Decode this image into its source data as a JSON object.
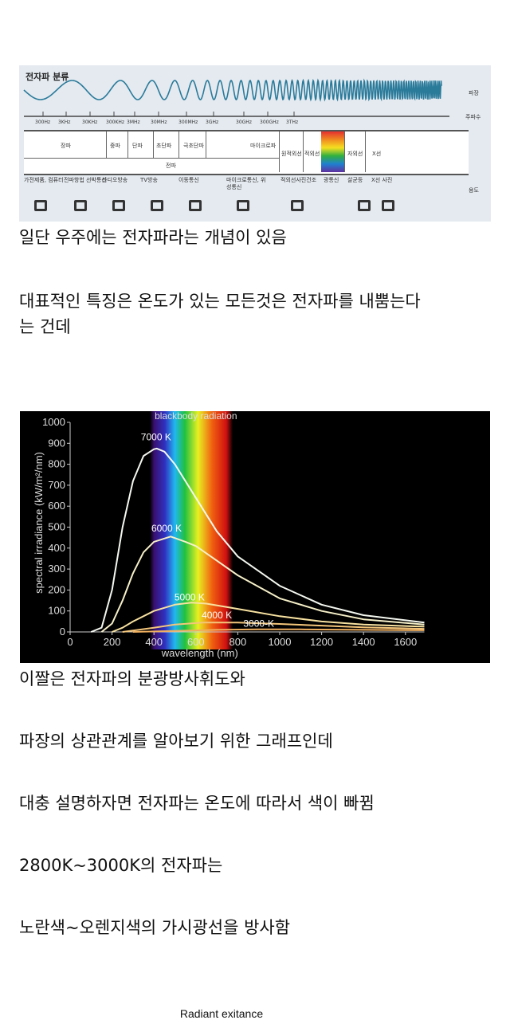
{
  "diagram": {
    "title": "전자파 분류",
    "row_labels": {
      "wavelength": "파장",
      "frequency": "주파수",
      "use": "용도"
    },
    "frequencies": [
      "300Hz",
      "3KHz",
      "30KHz",
      "300KHz",
      "3MHz",
      "30MHz",
      "300MHz",
      "3GHz",
      "30GHz",
      "300GHz",
      "3THz"
    ],
    "bands": [
      "장파",
      "중파",
      "단파",
      "초단파",
      "극초단파",
      "마이크로파"
    ],
    "radio_label": "전파",
    "optical_bands": [
      "원적외선",
      "적외선",
      "가시광선",
      "자외선",
      "X선"
    ],
    "uses": [
      "가전제품, 컴퓨터",
      "전파항법 선박통신",
      "라디오방송",
      "TV방송",
      "이동통신",
      "마이크로통신, 위성통신",
      "적외선사진건조",
      "광통신",
      "살균등",
      "X선 사진"
    ],
    "icons": [
      "computer-icon",
      "antenna-tower-icon",
      "radio-icon",
      "tv-icon",
      "mobile-phone-icon",
      "satellite-icon",
      "infrared-dryer-icon",
      "optical-comm-icon",
      "sterilizer-icon",
      "xray-photo-icon"
    ]
  },
  "paragraphs": [
    "일단 우주에는 전자파라는 개념이 있음",
    "대표적인 특징은 온도가 있는 모든것은 전자파를 내뿜는다",
    "는 건데",
    "이짤은 전자파의 분광방사휘도와",
    "파장의 상관관계를 알아보기 위한 그래프인데",
    "대충 설명하자면 전자파는 온도에 따라서 색이 빠뀜",
    "2800K~3000K의 전자파는",
    "노란색~오렌지색의 가시광선을 방사함"
  ],
  "caption": "Radiant exitance",
  "chart_data": {
    "type": "line",
    "title": "blackbody radiation",
    "xlabel": "wavelength (nm)",
    "ylabel": "spectral irradiance (kW/m²/nm)",
    "xlim": [
      0,
      1690
    ],
    "ylim": [
      0,
      1000
    ],
    "xticks": [
      0,
      200,
      400,
      600,
      800,
      1000,
      1200,
      1400,
      1600
    ],
    "yticks": [
      0,
      100,
      200,
      300,
      400,
      500,
      600,
      700,
      800,
      900,
      1000
    ],
    "grid": false,
    "visible_band_nm": [
      400,
      750
    ],
    "series": [
      {
        "name": "7000 K",
        "x": [
          100,
          150,
          200,
          250,
          300,
          350,
          400,
          414,
          450,
          500,
          600,
          700,
          800,
          1000,
          1200,
          1400,
          1690
        ],
        "y": [
          0,
          20,
          200,
          500,
          720,
          840,
          872,
          875,
          860,
          800,
          640,
          480,
          360,
          220,
          130,
          80,
          45
        ]
      },
      {
        "name": "6000 K",
        "x": [
          150,
          200,
          250,
          300,
          350,
          400,
          480,
          550,
          600,
          700,
          800,
          1000,
          1200,
          1400,
          1690
        ],
        "y": [
          0,
          40,
          150,
          280,
          380,
          430,
          455,
          430,
          410,
          340,
          270,
          160,
          100,
          60,
          35
        ]
      },
      {
        "name": "5000 K",
        "x": [
          200,
          250,
          300,
          400,
          500,
          580,
          650,
          800,
          1000,
          1200,
          1400,
          1690
        ],
        "y": [
          0,
          20,
          50,
          100,
          130,
          140,
          135,
          110,
          75,
          50,
          35,
          25
        ]
      },
      {
        "name": "4000 K",
        "x": [
          250,
          400,
          500,
          640,
          800,
          1000,
          1200,
          1400,
          1690
        ],
        "y": [
          0,
          20,
          35,
          45,
          45,
          38,
          30,
          22,
          15
        ]
      },
      {
        "name": "3000-K",
        "x": [
          300,
          500,
          700,
          900,
          1100,
          1400,
          1690
        ],
        "y": [
          0,
          5,
          10,
          12,
          12,
          10,
          8
        ]
      }
    ],
    "colors": {
      "background": "#000000",
      "7000 K": "#f4f8f0",
      "6000 K": "#f6f0c8",
      "5000 K": "#f8e2a0",
      "4000 K": "#f4c67a",
      "3000-K": "#f0b060"
    }
  }
}
